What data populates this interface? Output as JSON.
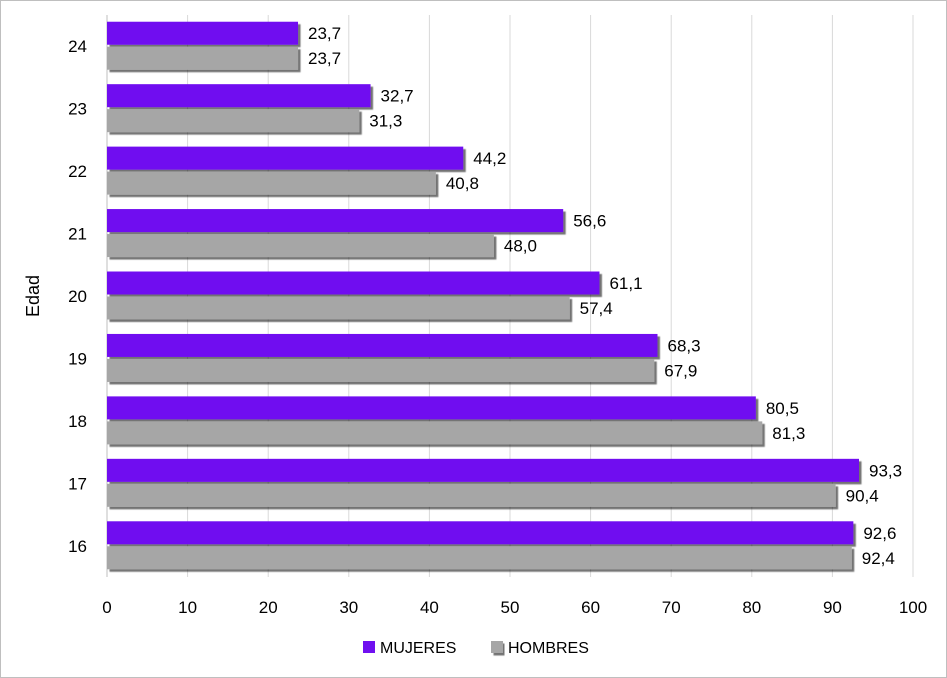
{
  "chart_data": {
    "type": "bar",
    "orientation": "horizontal",
    "categories": [
      "16",
      "17",
      "18",
      "19",
      "20",
      "21",
      "22",
      "23",
      "24"
    ],
    "series": [
      {
        "name": "MUJERES",
        "color": "#7010f0",
        "values": [
          92.6,
          93.3,
          80.5,
          68.3,
          61.1,
          56.6,
          44.2,
          32.7,
          23.7
        ],
        "labels": [
          "92,6",
          "93,3",
          "80,5",
          "68,3",
          "61,1",
          "56,6",
          "44,2",
          "32,7",
          "23,7"
        ]
      },
      {
        "name": "HOMBRES",
        "color": "#a6a6a6",
        "values": [
          92.4,
          90.4,
          81.3,
          67.9,
          57.4,
          48.0,
          40.8,
          31.3,
          23.7
        ],
        "labels": [
          "92,4",
          "90,4",
          "81,3",
          "67,9",
          "57,4",
          "48,0",
          "40,8",
          "31,3",
          "23,7"
        ]
      }
    ],
    "xlim": [
      0,
      100
    ],
    "xticks": [
      "0",
      "10",
      "20",
      "30",
      "40",
      "50",
      "60",
      "70",
      "80",
      "90",
      "100"
    ],
    "ylabel": "Edad",
    "xlabel": "",
    "grid": "vertical",
    "legend": "bottom"
  }
}
